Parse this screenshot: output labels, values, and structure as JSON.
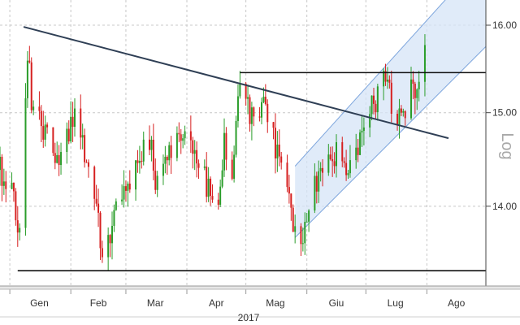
{
  "chart_data": {
    "type": "candlestick",
    "title": "",
    "xlabel": "",
    "ylabel": "",
    "scale_label": "Log",
    "y_scale": "log",
    "year_label": "2017",
    "ylim": [
      13.2,
      16.3
    ],
    "y_ticks": [
      {
        "value": 14.0,
        "label": "14.00"
      },
      {
        "value": 15.0,
        "label": "15.00"
      },
      {
        "value": 16.0,
        "label": "16.00"
      }
    ],
    "x_range": [
      "2016-12-27",
      "2017-08-31"
    ],
    "months": [
      {
        "label": "Gen",
        "date": "2017-01-01"
      },
      {
        "label": "Feb",
        "date": "2017-02-01"
      },
      {
        "label": "Mar",
        "date": "2017-03-01"
      },
      {
        "label": "Apr",
        "date": "2017-04-01"
      },
      {
        "label": "Mag",
        "date": "2017-05-01"
      },
      {
        "label": "Giu",
        "date": "2017-06-01"
      },
      {
        "label": "Lug",
        "date": "2017-07-01"
      },
      {
        "label": "Ago",
        "date": "2017-08-01"
      }
    ],
    "up_color": "#2a9d2a",
    "down_color": "#d62020",
    "grid": true,
    "annotations": [
      {
        "type": "trendline",
        "from": {
          "date": "2017-01-08",
          "value": 15.98
        },
        "to": {
          "date": "2017-08-12",
          "value": 14.72
        }
      },
      {
        "type": "support",
        "from": {
          "date": "2017-01-05",
          "value": 13.35
        },
        "to": {
          "date": "2017-08-31",
          "value": 13.35
        }
      },
      {
        "type": "resistance",
        "from": {
          "date": "2017-04-28",
          "value": 15.45
        },
        "to": {
          "date": "2017-08-31",
          "value": 15.45
        }
      },
      {
        "type": "channel",
        "lower": {
          "from": {
            "date": "2017-05-26",
            "value": 13.68
          },
          "to": {
            "date": "2017-08-31",
            "value": 15.75
          }
        },
        "upper": {
          "from": {
            "date": "2017-05-26",
            "value": 14.42
          },
          "to": {
            "date": "2017-08-31",
            "value": 16.85
          }
        }
      }
    ],
    "keypoints": [
      [
        "2016-12-27",
        14.38
      ],
      [
        "2017-01-03",
        14.18
      ],
      [
        "2017-01-05",
        13.75
      ],
      [
        "2017-01-07",
        14.1
      ],
      [
        "2017-01-10",
        15.75
      ],
      [
        "2017-01-12",
        15.1
      ],
      [
        "2017-01-20",
        14.7
      ],
      [
        "2017-01-27",
        14.5
      ],
      [
        "2017-02-03",
        14.95
      ],
      [
        "2017-02-09",
        14.45
      ],
      [
        "2017-02-14",
        14.05
      ],
      [
        "2017-02-17",
        13.45
      ],
      [
        "2017-02-22",
        13.85
      ],
      [
        "2017-02-28",
        14.15
      ],
      [
        "2017-03-07",
        14.45
      ],
      [
        "2017-03-13",
        14.7
      ],
      [
        "2017-03-16",
        14.3
      ],
      [
        "2017-03-22",
        14.55
      ],
      [
        "2017-03-29",
        14.85
      ],
      [
        "2017-04-05",
        14.55
      ],
      [
        "2017-04-13",
        14.15
      ],
      [
        "2017-04-17",
        14.0
      ],
      [
        "2017-04-20",
        14.7
      ],
      [
        "2017-04-24",
        14.4
      ],
      [
        "2017-04-28",
        15.4
      ],
      [
        "2017-05-03",
        14.95
      ],
      [
        "2017-05-10",
        15.05
      ],
      [
        "2017-05-16",
        14.65
      ],
      [
        "2017-05-22",
        14.3
      ],
      [
        "2017-05-24",
        13.9
      ],
      [
        "2017-05-30",
        13.7
      ],
      [
        "2017-06-06",
        14.3
      ],
      [
        "2017-06-12",
        14.6
      ],
      [
        "2017-06-19",
        14.55
      ],
      [
        "2017-06-23",
        14.4
      ],
      [
        "2017-06-28",
        14.7
      ],
      [
        "2017-07-03",
        15.0
      ],
      [
        "2017-07-10",
        15.4
      ],
      [
        "2017-07-14",
        15.15
      ],
      [
        "2017-07-19",
        14.95
      ],
      [
        "2017-07-24",
        15.3
      ],
      [
        "2017-07-27",
        15.25
      ],
      [
        "2017-07-31",
        15.8
      ]
    ]
  }
}
